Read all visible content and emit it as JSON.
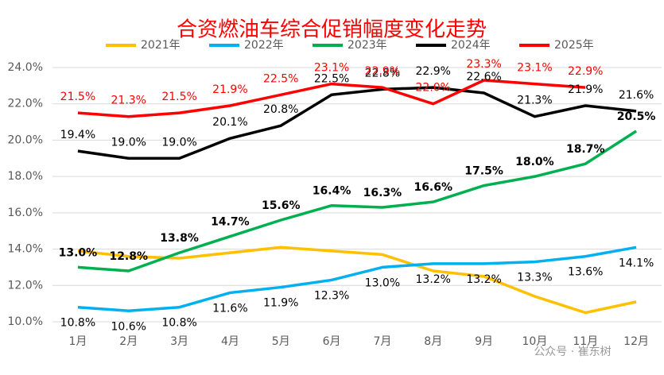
{
  "chart_data": {
    "type": "line",
    "title": "合资燃油车综合促销幅度变化走势",
    "watermark": "公众号 · 崔东树",
    "categories": [
      "1月",
      "2月",
      "3月",
      "4月",
      "5月",
      "6月",
      "7月",
      "8月",
      "9月",
      "10月",
      "11月",
      "12月"
    ],
    "ylim": [
      10,
      24
    ],
    "yticks": [
      {
        "value": 10,
        "label": "10.0%"
      },
      {
        "value": 12,
        "label": "12.0%"
      },
      {
        "value": 14,
        "label": "14.0%"
      },
      {
        "value": 16,
        "label": "16.0%"
      },
      {
        "value": 18,
        "label": "18.0%"
      },
      {
        "value": 20,
        "label": "20.0%"
      },
      {
        "value": 22,
        "label": "22.0%"
      },
      {
        "value": 24,
        "label": "24.0%"
      }
    ],
    "grid": true,
    "legend": "top",
    "series": [
      {
        "name": "2021年",
        "color": "#ffc000",
        "values": [
          13.9,
          13.6,
          13.5,
          13.8,
          14.1,
          13.9,
          13.7,
          12.8,
          12.5,
          11.4,
          10.5,
          11.1
        ]
      },
      {
        "name": "2022年",
        "color": "#00b0f0",
        "values": [
          10.8,
          10.6,
          10.8,
          11.6,
          11.9,
          12.3,
          13.0,
          13.2,
          13.2,
          13.3,
          13.6,
          14.1
        ],
        "value_labels": [
          "10.8%",
          "10.6%",
          "10.8%",
          "11.6%",
          "11.9%",
          "12.3%",
          "13.0%",
          "13.2%",
          "13.2%",
          "13.3%",
          "13.6%",
          "14.1%"
        ]
      },
      {
        "name": "2023年",
        "color": "#00b050",
        "values": [
          13.0,
          12.8,
          13.8,
          14.7,
          15.6,
          16.4,
          16.3,
          16.6,
          17.5,
          18.0,
          18.7,
          20.5
        ],
        "value_labels": [
          "13.0%",
          "12.8%",
          "13.8%",
          "14.7%",
          "15.6%",
          "16.4%",
          "16.3%",
          "16.6%",
          "17.5%",
          "18.0%",
          "18.7%",
          "20.5%"
        ]
      },
      {
        "name": "2024年",
        "color": "#000000",
        "values": [
          19.4,
          19.0,
          19.0,
          20.1,
          20.8,
          22.5,
          22.8,
          22.9,
          22.6,
          21.3,
          21.9,
          21.6
        ],
        "value_labels": [
          "19.4%",
          "19.0%",
          "19.0%",
          "20.1%",
          "20.8%",
          "22.5%",
          "22.8%",
          "22.9%",
          "22.6%",
          "21.3%",
          "21.9%",
          "21.6%"
        ]
      },
      {
        "name": "2025年",
        "color": "#ff0000",
        "values": [
          21.5,
          21.3,
          21.5,
          21.9,
          22.5,
          23.1,
          22.9,
          22.0,
          23.3,
          23.1,
          22.9,
          null
        ],
        "value_labels": [
          "21.5%",
          "21.3%",
          "21.5%",
          "21.9%",
          "22.5%",
          "23.1%",
          "22.9%",
          "22.0%",
          "23.3%",
          "23.1%",
          "22.9%",
          null
        ]
      }
    ]
  }
}
